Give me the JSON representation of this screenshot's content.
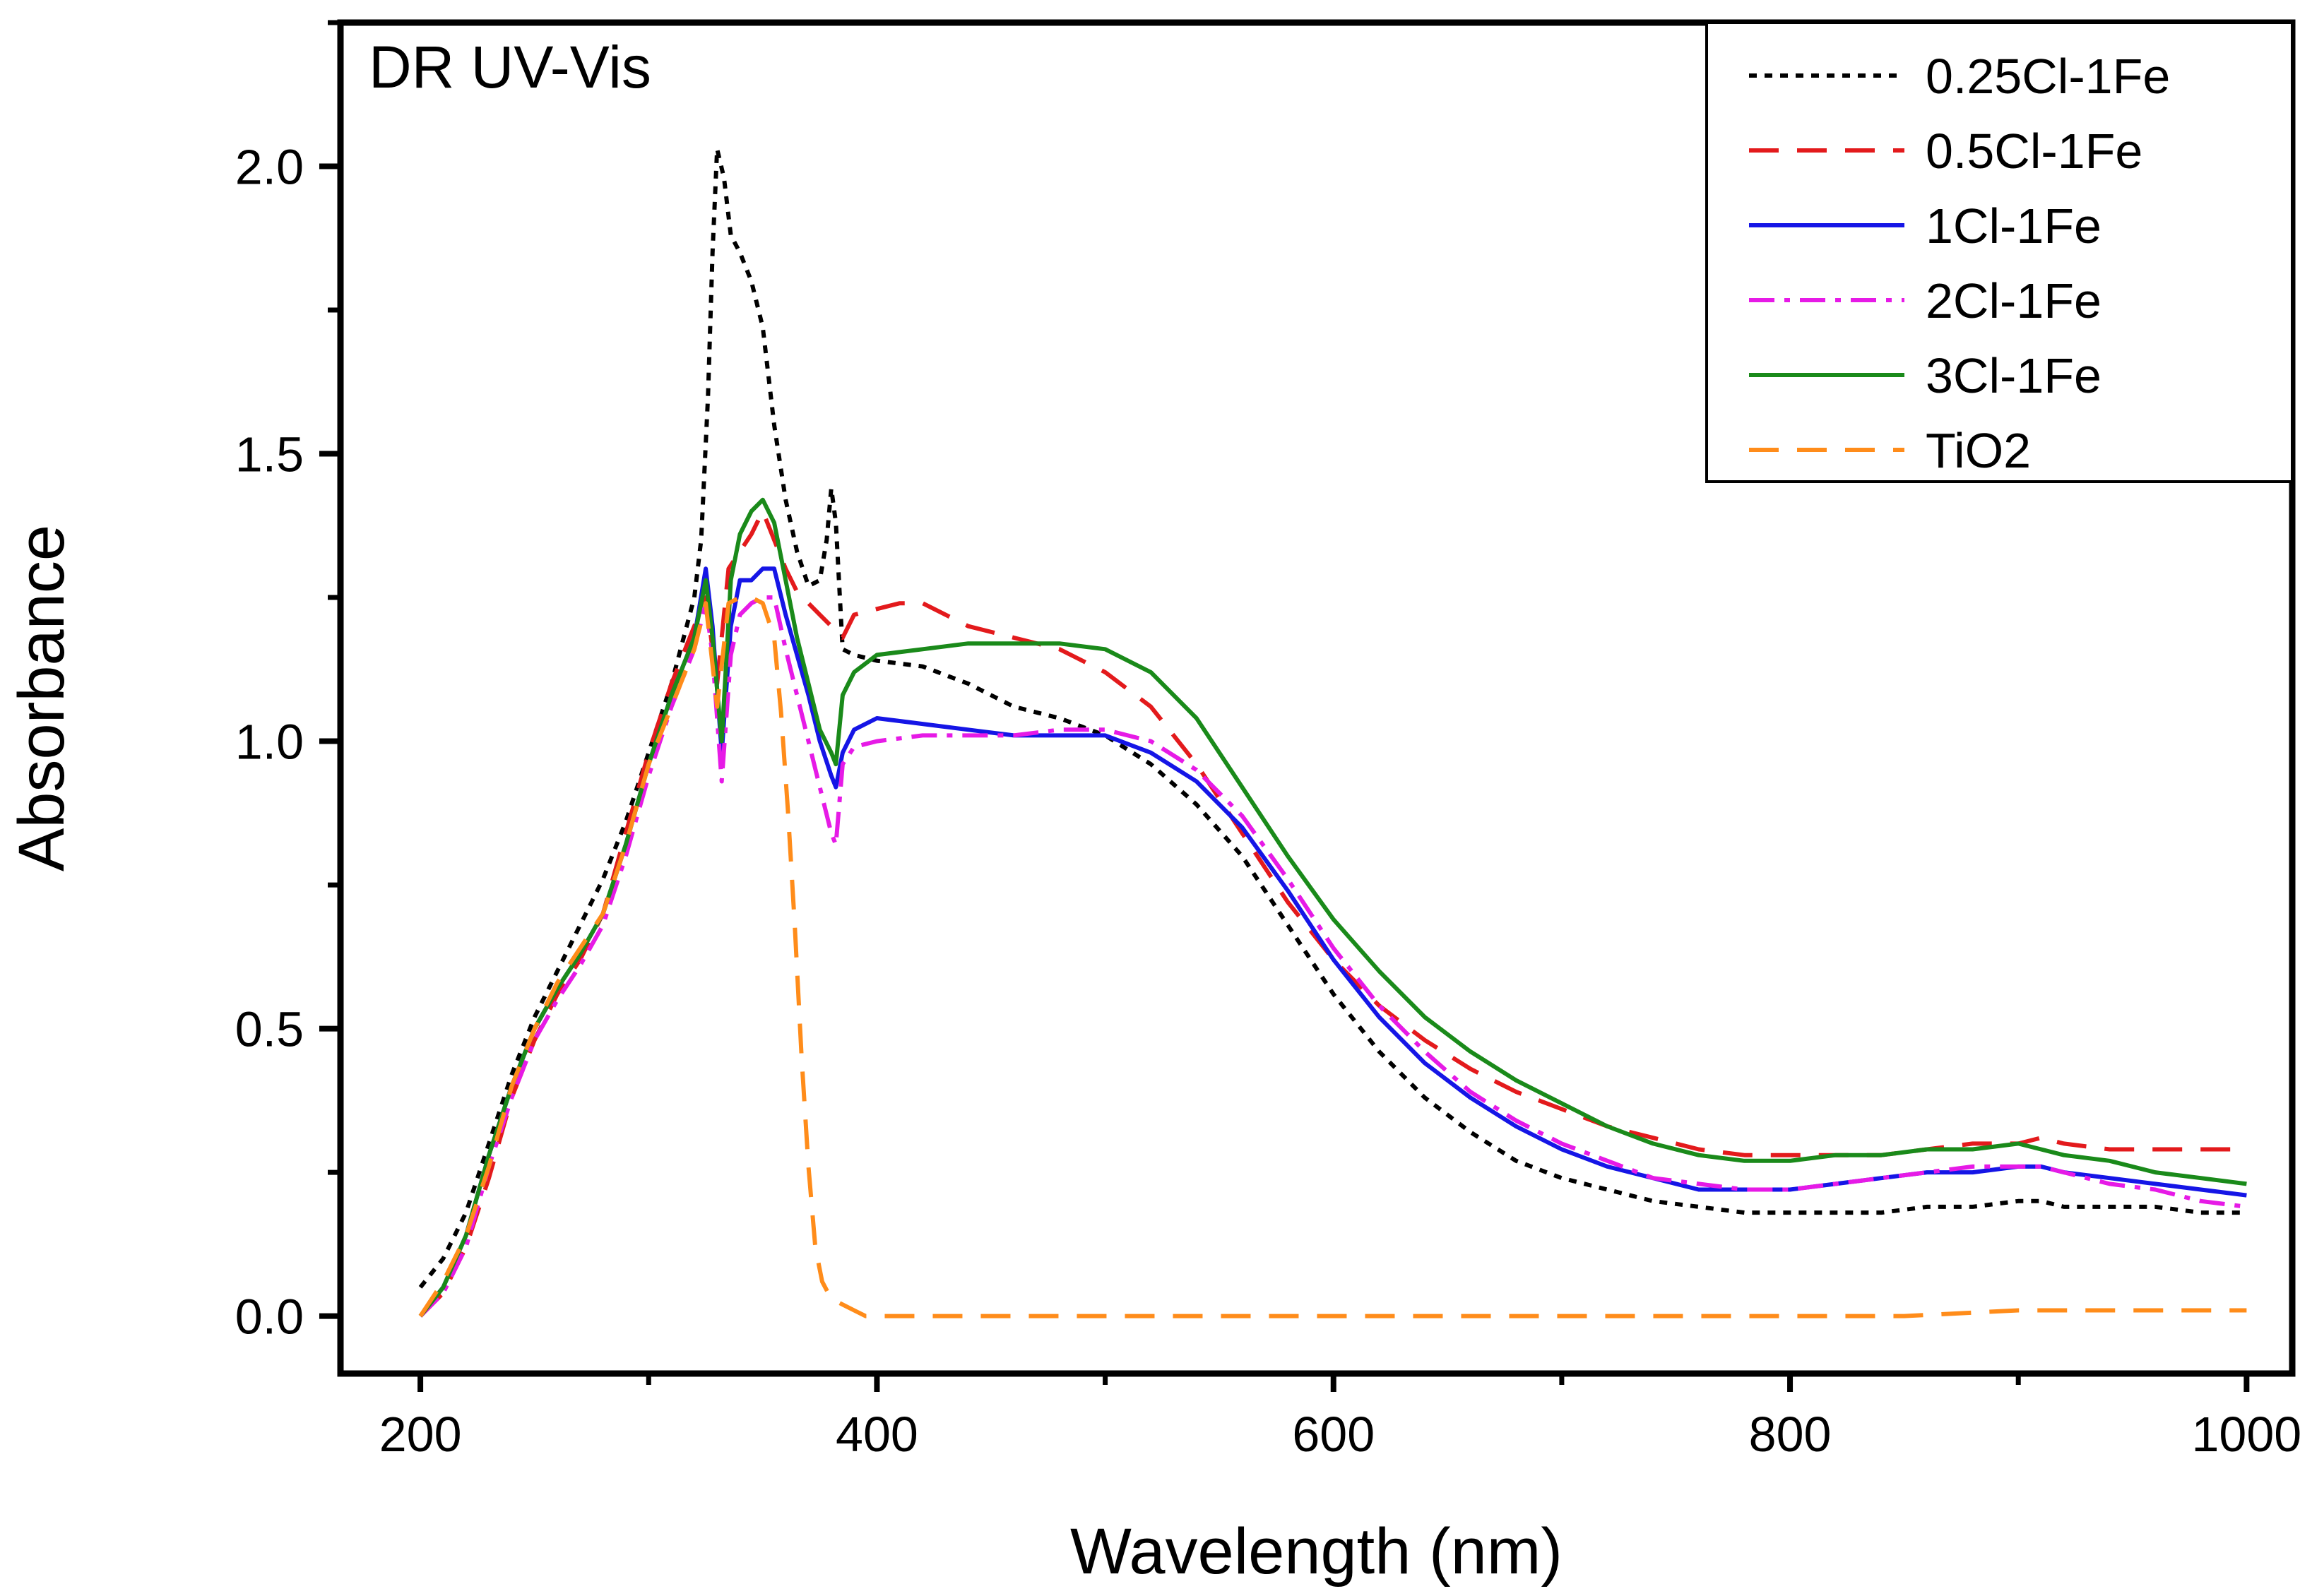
{
  "chart_data": {
    "type": "line",
    "title": "DR UV-Vis",
    "xlabel": "Wavelength (nm)",
    "ylabel": "Absorbance",
    "xlim": [
      165,
      1020
    ],
    "ylim": [
      -0.1,
      2.25
    ],
    "xticks": [
      200,
      400,
      600,
      800,
      1000
    ],
    "xtick_labels": [
      "200",
      "400",
      "600",
      "800",
      "1000"
    ],
    "yticks": [
      0.0,
      0.5,
      1.0,
      1.5,
      2.0
    ],
    "ytick_labels": [
      "0.0",
      "0.5",
      "1.0",
      "1.5",
      "2.0"
    ],
    "legend_position": "top-right",
    "grid": false,
    "series": [
      {
        "name": "0.25Cl-1Fe",
        "color": "#000000",
        "dash": "dotted",
        "x": [
          200,
          210,
          220,
          230,
          240,
          250,
          260,
          270,
          280,
          290,
          300,
          310,
          320,
          323,
          326,
          328,
          330,
          333,
          336,
          340,
          345,
          350,
          355,
          360,
          365,
          370,
          375,
          378,
          380,
          382,
          385,
          390,
          400,
          420,
          440,
          460,
          480,
          500,
          520,
          540,
          560,
          580,
          600,
          620,
          640,
          660,
          680,
          700,
          720,
          740,
          760,
          780,
          800,
          820,
          840,
          860,
          880,
          900,
          910,
          920,
          940,
          960,
          980,
          1000
        ],
        "y": [
          0.05,
          0.1,
          0.18,
          0.3,
          0.42,
          0.52,
          0.6,
          0.68,
          0.76,
          0.86,
          0.98,
          1.1,
          1.25,
          1.35,
          1.6,
          1.85,
          2.03,
          1.98,
          1.88,
          1.85,
          1.8,
          1.72,
          1.55,
          1.42,
          1.33,
          1.27,
          1.28,
          1.35,
          1.44,
          1.38,
          1.16,
          1.15,
          1.14,
          1.13,
          1.1,
          1.06,
          1.04,
          1.01,
          0.96,
          0.89,
          0.8,
          0.68,
          0.56,
          0.46,
          0.38,
          0.32,
          0.27,
          0.24,
          0.22,
          0.2,
          0.19,
          0.18,
          0.18,
          0.18,
          0.18,
          0.19,
          0.19,
          0.2,
          0.2,
          0.19,
          0.19,
          0.19,
          0.18,
          0.18
        ]
      },
      {
        "name": "0.5Cl-1Fe",
        "color": "#e31a1c",
        "dash": "dashed",
        "x": [
          200,
          210,
          220,
          230,
          240,
          250,
          260,
          270,
          280,
          290,
          300,
          310,
          320,
          325,
          330,
          335,
          340,
          345,
          350,
          355,
          360,
          365,
          370,
          375,
          380,
          385,
          390,
          400,
          410,
          420,
          440,
          460,
          480,
          500,
          520,
          540,
          560,
          580,
          600,
          620,
          640,
          660,
          680,
          700,
          720,
          740,
          760,
          780,
          800,
          820,
          840,
          860,
          880,
          900,
          910,
          920,
          940,
          960,
          980,
          1000
        ],
        "y": [
          0.0,
          0.04,
          0.12,
          0.24,
          0.38,
          0.48,
          0.56,
          0.62,
          0.7,
          0.84,
          0.98,
          1.1,
          1.2,
          1.25,
          1.1,
          1.3,
          1.33,
          1.36,
          1.4,
          1.35,
          1.3,
          1.26,
          1.24,
          1.22,
          1.2,
          1.18,
          1.22,
          1.23,
          1.24,
          1.24,
          1.2,
          1.18,
          1.16,
          1.12,
          1.06,
          0.96,
          0.84,
          0.72,
          0.62,
          0.54,
          0.48,
          0.43,
          0.39,
          0.36,
          0.33,
          0.31,
          0.29,
          0.28,
          0.28,
          0.28,
          0.28,
          0.29,
          0.3,
          0.3,
          0.31,
          0.3,
          0.29,
          0.29,
          0.29,
          0.29
        ]
      },
      {
        "name": "1Cl-1Fe",
        "color": "#1515e6",
        "dash": "solid",
        "x": [
          200,
          210,
          220,
          230,
          240,
          250,
          260,
          270,
          280,
          290,
          300,
          310,
          320,
          325,
          328,
          332,
          336,
          340,
          345,
          350,
          355,
          360,
          365,
          370,
          375,
          380,
          382,
          385,
          390,
          400,
          420,
          440,
          460,
          480,
          500,
          520,
          540,
          560,
          580,
          600,
          620,
          640,
          660,
          680,
          700,
          720,
          740,
          760,
          780,
          800,
          820,
          840,
          860,
          880,
          900,
          910,
          920,
          940,
          960,
          980,
          1000
        ],
        "y": [
          0.0,
          0.05,
          0.14,
          0.28,
          0.4,
          0.5,
          0.57,
          0.63,
          0.7,
          0.82,
          0.96,
          1.08,
          1.18,
          1.3,
          1.2,
          0.98,
          1.2,
          1.28,
          1.28,
          1.3,
          1.3,
          1.22,
          1.15,
          1.08,
          1.0,
          0.94,
          0.92,
          0.98,
          1.02,
          1.04,
          1.03,
          1.02,
          1.01,
          1.01,
          1.01,
          0.98,
          0.93,
          0.85,
          0.74,
          0.62,
          0.52,
          0.44,
          0.38,
          0.33,
          0.29,
          0.26,
          0.24,
          0.22,
          0.22,
          0.22,
          0.23,
          0.24,
          0.25,
          0.25,
          0.26,
          0.26,
          0.25,
          0.24,
          0.23,
          0.22,
          0.21
        ]
      },
      {
        "name": "2Cl-1Fe",
        "color": "#e61ae6",
        "dash": "dashdot",
        "x": [
          200,
          210,
          220,
          230,
          240,
          250,
          260,
          270,
          280,
          290,
          300,
          310,
          320,
          325,
          328,
          332,
          336,
          340,
          345,
          350,
          355,
          360,
          365,
          370,
          375,
          380,
          382,
          385,
          390,
          400,
          420,
          440,
          460,
          480,
          500,
          520,
          540,
          560,
          580,
          600,
          620,
          640,
          660,
          680,
          700,
          720,
          740,
          760,
          780,
          800,
          820,
          840,
          860,
          880,
          900,
          910,
          920,
          940,
          960,
          980,
          1000
        ],
        "y": [
          0.0,
          0.04,
          0.12,
          0.26,
          0.38,
          0.48,
          0.55,
          0.61,
          0.68,
          0.8,
          0.94,
          1.06,
          1.16,
          1.24,
          1.15,
          0.93,
          1.15,
          1.22,
          1.24,
          1.25,
          1.25,
          1.16,
          1.08,
          1.0,
          0.92,
          0.84,
          0.82,
          0.96,
          0.99,
          1.0,
          1.01,
          1.01,
          1.01,
          1.02,
          1.02,
          1.0,
          0.95,
          0.87,
          0.76,
          0.64,
          0.54,
          0.46,
          0.39,
          0.34,
          0.3,
          0.27,
          0.24,
          0.23,
          0.22,
          0.22,
          0.23,
          0.24,
          0.25,
          0.26,
          0.26,
          0.26,
          0.25,
          0.23,
          0.22,
          0.2,
          0.19
        ]
      },
      {
        "name": "3Cl-1Fe",
        "color": "#1a8a1a",
        "dash": "solid",
        "x": [
          200,
          210,
          220,
          230,
          240,
          250,
          260,
          270,
          280,
          290,
          300,
          310,
          320,
          325,
          328,
          332,
          336,
          340,
          345,
          350,
          355,
          360,
          365,
          370,
          375,
          380,
          382,
          385,
          390,
          400,
          420,
          440,
          460,
          480,
          500,
          520,
          540,
          560,
          580,
          600,
          620,
          640,
          660,
          680,
          700,
          720,
          740,
          760,
          780,
          800,
          820,
          840,
          860,
          880,
          900,
          910,
          920,
          940,
          960,
          980,
          1000
        ],
        "y": [
          0.0,
          0.05,
          0.14,
          0.28,
          0.4,
          0.5,
          0.57,
          0.63,
          0.7,
          0.82,
          0.96,
          1.08,
          1.18,
          1.28,
          1.18,
          1.0,
          1.28,
          1.36,
          1.4,
          1.42,
          1.38,
          1.28,
          1.18,
          1.1,
          1.02,
          0.98,
          0.96,
          1.08,
          1.12,
          1.15,
          1.16,
          1.17,
          1.17,
          1.17,
          1.16,
          1.12,
          1.04,
          0.92,
          0.8,
          0.69,
          0.6,
          0.52,
          0.46,
          0.41,
          0.37,
          0.33,
          0.3,
          0.28,
          0.27,
          0.27,
          0.28,
          0.28,
          0.29,
          0.29,
          0.3,
          0.29,
          0.28,
          0.27,
          0.25,
          0.24,
          0.23
        ]
      },
      {
        "name": "TiO2",
        "color": "#ff8c1a",
        "dash": "dashed",
        "x": [
          200,
          210,
          220,
          230,
          240,
          250,
          260,
          270,
          280,
          290,
          300,
          310,
          320,
          325,
          330,
          335,
          340,
          345,
          350,
          355,
          358,
          361,
          364,
          367,
          370,
          373,
          376,
          380,
          385,
          390,
          395,
          400,
          450,
          500,
          550,
          600,
          650,
          700,
          750,
          800,
          850,
          900,
          950,
          1000
        ],
        "y": [
          0.0,
          0.06,
          0.14,
          0.26,
          0.4,
          0.5,
          0.58,
          0.64,
          0.7,
          0.82,
          0.96,
          1.06,
          1.16,
          1.24,
          1.06,
          1.24,
          1.25,
          1.25,
          1.24,
          1.18,
          1.05,
          0.88,
          0.68,
          0.45,
          0.26,
          0.12,
          0.06,
          0.03,
          0.02,
          0.01,
          0.0,
          0.0,
          0.0,
          0.0,
          0.0,
          0.0,
          0.0,
          0.0,
          0.0,
          0.0,
          0.0,
          0.01,
          0.01,
          0.01
        ]
      }
    ]
  }
}
